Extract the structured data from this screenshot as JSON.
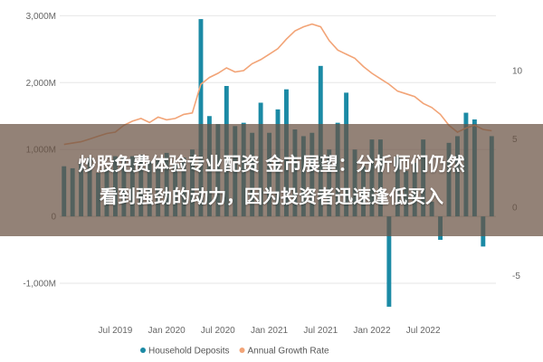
{
  "colors": {
    "bar": "#1b8aa5",
    "line": "#f2a477",
    "gridline": "#e6e6e6",
    "zero_line": "#cccccc"
  },
  "chart_data": {
    "type": "bar",
    "x_tick_labels": [
      "Jul 2019",
      "Jan 2020",
      "Jul 2020",
      "Jan 2021",
      "Jul 2021",
      "Jan 2022",
      "Jul 2022"
    ],
    "y_left_ticks": [
      "3,000M",
      "2,000M",
      "1,000M",
      "0",
      "-1,000M"
    ],
    "y_left_values": [
      3000,
      2000,
      1000,
      0,
      -1000
    ],
    "y_left_range": [
      -1500,
      3100
    ],
    "y_right_ticks": [
      "10",
      "5",
      "0",
      "-5"
    ],
    "y_right_values": [
      10,
      5,
      0,
      -5
    ],
    "y_right_range": [
      -8,
      14.5
    ],
    "months_per_category": 1,
    "first_month": "2019-01",
    "series": [
      {
        "name": "Household Deposits",
        "axis": "left",
        "type": "bar",
        "values": [
          750,
          720,
          800,
          880,
          650,
          720,
          900,
          880,
          900,
          920,
          820,
          840,
          950,
          780,
          880,
          1000,
          2950,
          1500,
          1380,
          1950,
          1350,
          1400,
          1250,
          1700,
          1250,
          1600,
          1900,
          1300,
          1200,
          1250,
          2250,
          1000,
          1400,
          1850,
          1000,
          750,
          1150,
          1150,
          -1350,
          900,
          680,
          800,
          1150,
          220,
          -350,
          1100,
          1200,
          1550,
          1450,
          -450,
          1200
        ]
      },
      {
        "name": "Annual Growth Rate",
        "axis": "right",
        "type": "line",
        "values": [
          4.6,
          4.7,
          4.8,
          5.0,
          5.2,
          5.4,
          5.5,
          6.0,
          6.3,
          6.5,
          6.2,
          6.6,
          6.4,
          6.5,
          6.8,
          6.9,
          9.0,
          9.5,
          9.8,
          10.2,
          9.9,
          10.0,
          10.5,
          10.8,
          11.2,
          11.6,
          12.3,
          12.9,
          13.2,
          13.4,
          13.2,
          12.2,
          11.5,
          11.2,
          10.9,
          10.3,
          9.8,
          9.4,
          9.0,
          8.5,
          8.3,
          8.1,
          7.6,
          7.3,
          6.8,
          6.0,
          5.5,
          5.8,
          6.0,
          5.7,
          5.6
        ]
      }
    ],
    "legend": {
      "position": "bottom-center",
      "items": [
        "Household Deposits",
        "Annual Growth Rate"
      ]
    },
    "grid": "horizontal"
  },
  "overlay": {
    "line1": "炒股免费体验专业配资 金市展望：分析师们仍然",
    "line2": "看到强劲的动力，因为投资者迅速逢低买入"
  }
}
